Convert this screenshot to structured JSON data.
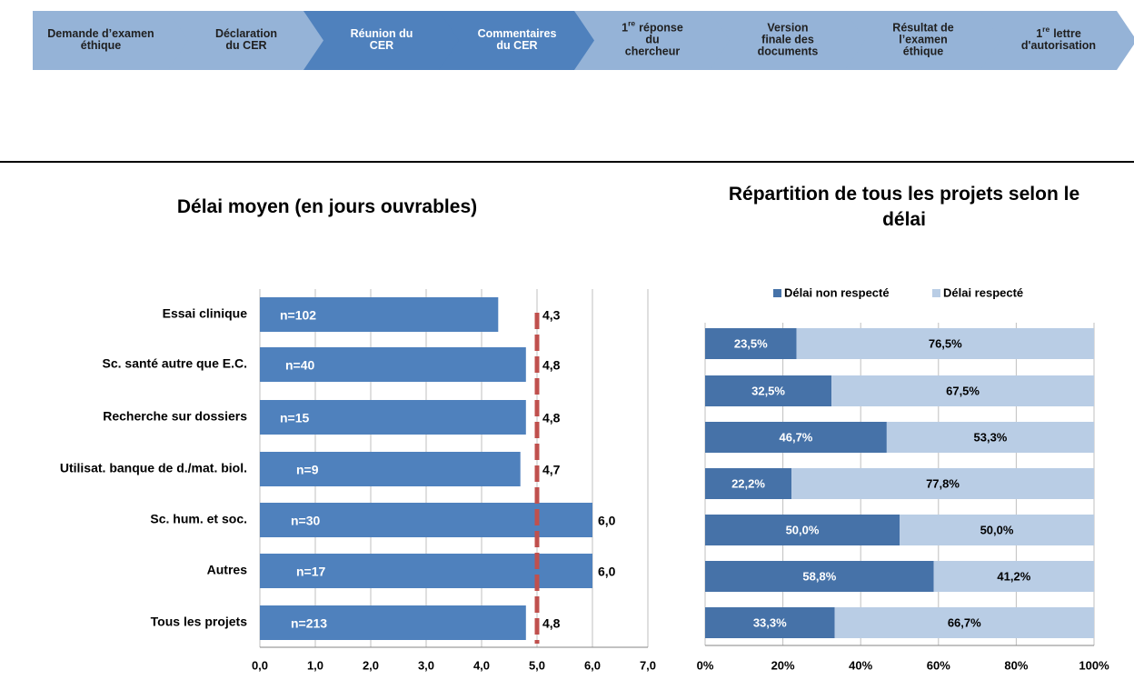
{
  "process": {
    "steps": [
      {
        "lines": [
          "Demande d’examen",
          "éthique"
        ],
        "color": "#95b3d7"
      },
      {
        "lines": [
          "Déclaration",
          "du CER"
        ],
        "color": "#95b3d7"
      },
      {
        "lines": [
          "Réunion  du",
          "CER"
        ],
        "color": "#4f81bd"
      },
      {
        "lines": [
          "Commentaires",
          "du CER"
        ],
        "color": "#4f81bd"
      },
      {
        "number": "1",
        "sup": "re",
        "lines": [
          "réponse",
          "du",
          "chercheur"
        ],
        "color": "#95b3d7"
      },
      {
        "lines": [
          "Version",
          "finale des",
          "documents"
        ],
        "color": "#95b3d7"
      },
      {
        "lines": [
          "Résultat de",
          "l’examen",
          "éthique"
        ],
        "color": "#95b3d7"
      },
      {
        "number": "1",
        "sup": "re",
        "lines": [
          "lettre",
          "d'autorisation"
        ],
        "color": "#95b3d7"
      }
    ]
  },
  "chart_data": [
    {
      "type": "bar",
      "orientation": "horizontal",
      "title": "Délai moyen (en jours ouvrables)",
      "categories": [
        "Essai clinique",
        "Sc. santé autre que E.C.",
        "Recherche sur dossiers",
        "Utilisat. banque de d./mat. biol.",
        "Sc. hum. et soc.",
        "Autres",
        "Tous les projets"
      ],
      "values": [
        4.3,
        4.8,
        4.8,
        4.7,
        6.0,
        6.0,
        4.8
      ],
      "value_labels": [
        "4,3",
        "4,8",
        "4,8",
        "4,7",
        "6,0",
        "6,0",
        "4,8"
      ],
      "annotations": [
        "n=102",
        "n=40",
        "n=15",
        "n=9",
        "n=30",
        "n=17",
        "n=213"
      ],
      "color": "#4f81bd",
      "reference_line": 5,
      "reference_color": "#c0504d",
      "xlim": [
        0,
        7
      ],
      "xticks": [
        {
          "value": 0,
          "label": "0,0"
        },
        {
          "value": 1,
          "label": "1,0"
        },
        {
          "value": 2,
          "label": "2,0"
        },
        {
          "value": 3,
          "label": "3,0"
        },
        {
          "value": 4,
          "label": "4,0"
        },
        {
          "value": 5,
          "label": "5,0"
        },
        {
          "value": 6,
          "label": "6,0"
        },
        {
          "value": 7,
          "label": "7,0"
        }
      ],
      "grid": true
    },
    {
      "type": "stacked_bar",
      "orientation": "horizontal",
      "title": "Répartition de tous les projets selon le délai",
      "series": [
        {
          "name": "Délai non respecté",
          "color": "#4672a8",
          "values": [
            23.5,
            32.5,
            46.7,
            22.2,
            50.0,
            58.8,
            33.3
          ],
          "value_labels": [
            "23,5%",
            "32,5%",
            "46,7%",
            "22,2%",
            "50,0%",
            "58,8%",
            "33,3%"
          ]
        },
        {
          "name": "Délai respecté",
          "color": "#b9cde5",
          "values": [
            76.5,
            67.5,
            53.3,
            77.8,
            50.0,
            41.2,
            66.7
          ],
          "value_labels": [
            "76,5%",
            "67,5%",
            "53,3%",
            "77,8%",
            "50,0%",
            "41,2%",
            "66,7%"
          ]
        }
      ],
      "xlim": [
        0,
        100
      ],
      "xticks": [
        {
          "value": 0,
          "label": "0%"
        },
        {
          "value": 20,
          "label": "20%"
        },
        {
          "value": 40,
          "label": "40%"
        },
        {
          "value": 60,
          "label": "60%"
        },
        {
          "value": 80,
          "label": "80%"
        },
        {
          "value": 100,
          "label": "100%"
        }
      ],
      "grid": true,
      "legend": "top"
    }
  ]
}
